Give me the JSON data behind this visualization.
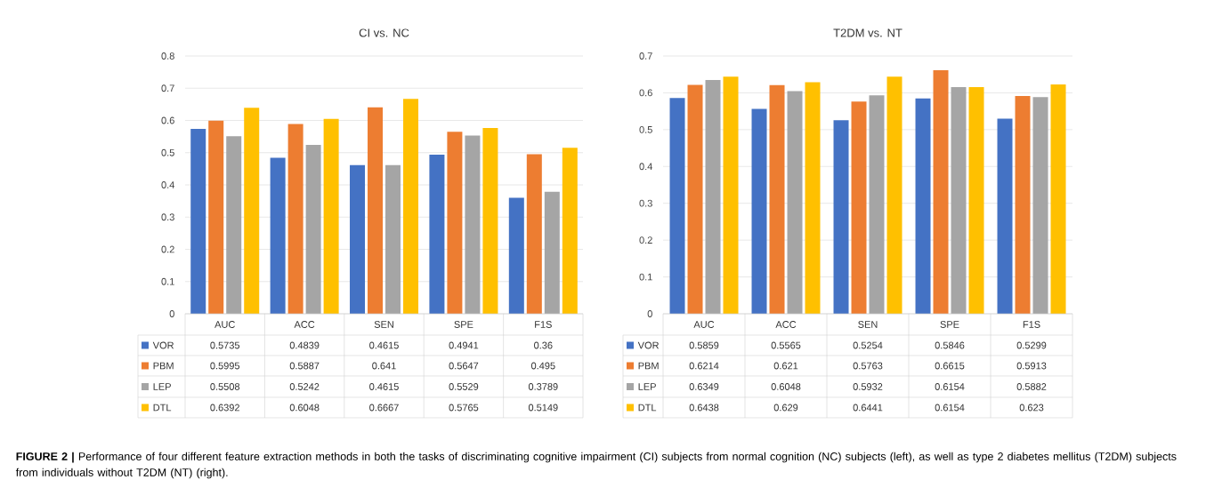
{
  "chart_data": [
    {
      "type": "bar",
      "title": "CI vs. NC",
      "categories": [
        "AUC",
        "ACC",
        "SEN",
        "SPE",
        "F1S"
      ],
      "series": [
        {
          "name": "VOR",
          "color": "#4472c4",
          "values": [
            0.5735,
            0.4839,
            0.4615,
            0.4941,
            0.36
          ]
        },
        {
          "name": "PBM",
          "color": "#ed7d31",
          "values": [
            0.5995,
            0.5887,
            0.641,
            0.5647,
            0.495
          ]
        },
        {
          "name": "LEP",
          "color": "#a5a5a5",
          "values": [
            0.5508,
            0.5242,
            0.4615,
            0.5529,
            0.3789
          ]
        },
        {
          "name": "DTL",
          "color": "#ffc000",
          "values": [
            0.6392,
            0.6048,
            0.6667,
            0.5765,
            0.5149
          ]
        }
      ],
      "ylim": [
        0,
        0.8
      ],
      "yticks": [
        0,
        0.1,
        0.2,
        0.3,
        0.4,
        0.5,
        0.6,
        0.7,
        0.8
      ],
      "grid": "y",
      "legend": "bottom",
      "data_labels": true,
      "annotations": [
        "**FIGURE 2 |** Performance of four different feature extraction methods in both the tasks of discriminating cognitive impairment (CI) subjects from normal cognition (NC) subjects (left), as well as type 2 diabetes mellitus (T2DM) subjects from individuals without T2DM (NT) (right)."
      ]
    },
    {
      "type": "bar",
      "title": "T2DM vs. NT",
      "categories": [
        "AUC",
        "ACC",
        "SEN",
        "SPE",
        "F1S"
      ],
      "series": [
        {
          "name": "VOR",
          "color": "#4472c4",
          "values": [
            0.5859,
            0.5565,
            0.5254,
            0.5846,
            0.5299
          ]
        },
        {
          "name": "PBM",
          "color": "#ed7d31",
          "values": [
            0.6214,
            0.621,
            0.5763,
            0.6615,
            0.5913
          ]
        },
        {
          "name": "LEP",
          "color": "#a5a5a5",
          "values": [
            0.6349,
            0.6048,
            0.5932,
            0.6154,
            0.5882
          ]
        },
        {
          "name": "DTL",
          "color": "#ffc000",
          "values": [
            0.6438,
            0.629,
            0.6441,
            0.6154,
            0.623
          ]
        }
      ],
      "ylim": [
        0,
        0.7
      ],
      "yticks": [
        0,
        0.1,
        0.2,
        0.3,
        0.4,
        0.5,
        0.6,
        0.7
      ],
      "grid": "y",
      "legend": "bottom",
      "data_labels": true
    }
  ]
}
